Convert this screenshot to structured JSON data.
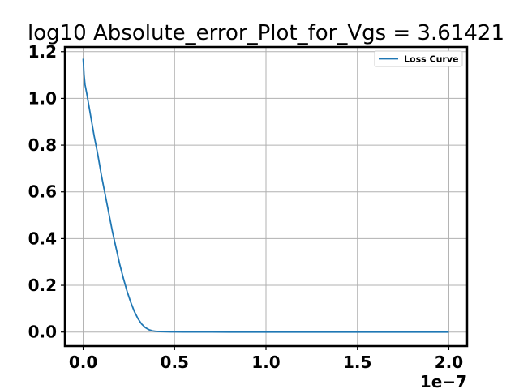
{
  "chart_data": {
    "type": "line",
    "title": "log10 Absolute_error_Plot_for_Vgs = 3.61421",
    "xlabel": "",
    "ylabel": "",
    "x_offset_label": "1e−7",
    "xlim": [
      -0.1,
      2.1
    ],
    "ylim": [
      -0.06,
      1.22
    ],
    "x_ticks": [
      0.0,
      0.5,
      1.0,
      1.5,
      2.0
    ],
    "x_tick_labels": [
      "0.0",
      "0.5",
      "1.0",
      "1.5",
      "2.0"
    ],
    "y_ticks": [
      0.0,
      0.2,
      0.4,
      0.6,
      0.8,
      1.0,
      1.2
    ],
    "y_tick_labels": [
      "0.0",
      "0.2",
      "0.4",
      "0.6",
      "0.8",
      "1.0",
      "1.2"
    ],
    "grid": true,
    "legend_position": "top-right",
    "series": [
      {
        "name": "Loss Curve",
        "color": "#1f77b4",
        "x": [
          0.0,
          0.005,
          0.01,
          0.02,
          0.04,
          0.06,
          0.08,
          0.1,
          0.12,
          0.14,
          0.16,
          0.18,
          0.2,
          0.22,
          0.24,
          0.26,
          0.28,
          0.3,
          0.32,
          0.34,
          0.36,
          0.38,
          0.4,
          0.42,
          0.44,
          0.46,
          0.48,
          0.5,
          0.55,
          0.6,
          0.7,
          0.8,
          1.0,
          1.2,
          1.4,
          1.6,
          1.8,
          2.0
        ],
        "y": [
          1.17,
          1.1,
          1.06,
          1.02,
          0.93,
          0.84,
          0.76,
          0.67,
          0.59,
          0.51,
          0.43,
          0.36,
          0.29,
          0.23,
          0.175,
          0.128,
          0.088,
          0.057,
          0.034,
          0.019,
          0.01,
          0.005,
          0.003,
          0.002,
          0.0015,
          0.001,
          0.0008,
          0.0006,
          0.0004,
          0.0003,
          0.0002,
          0.0001,
          0.0,
          0.0,
          0.0,
          0.0,
          0.0,
          0.0
        ]
      }
    ]
  }
}
